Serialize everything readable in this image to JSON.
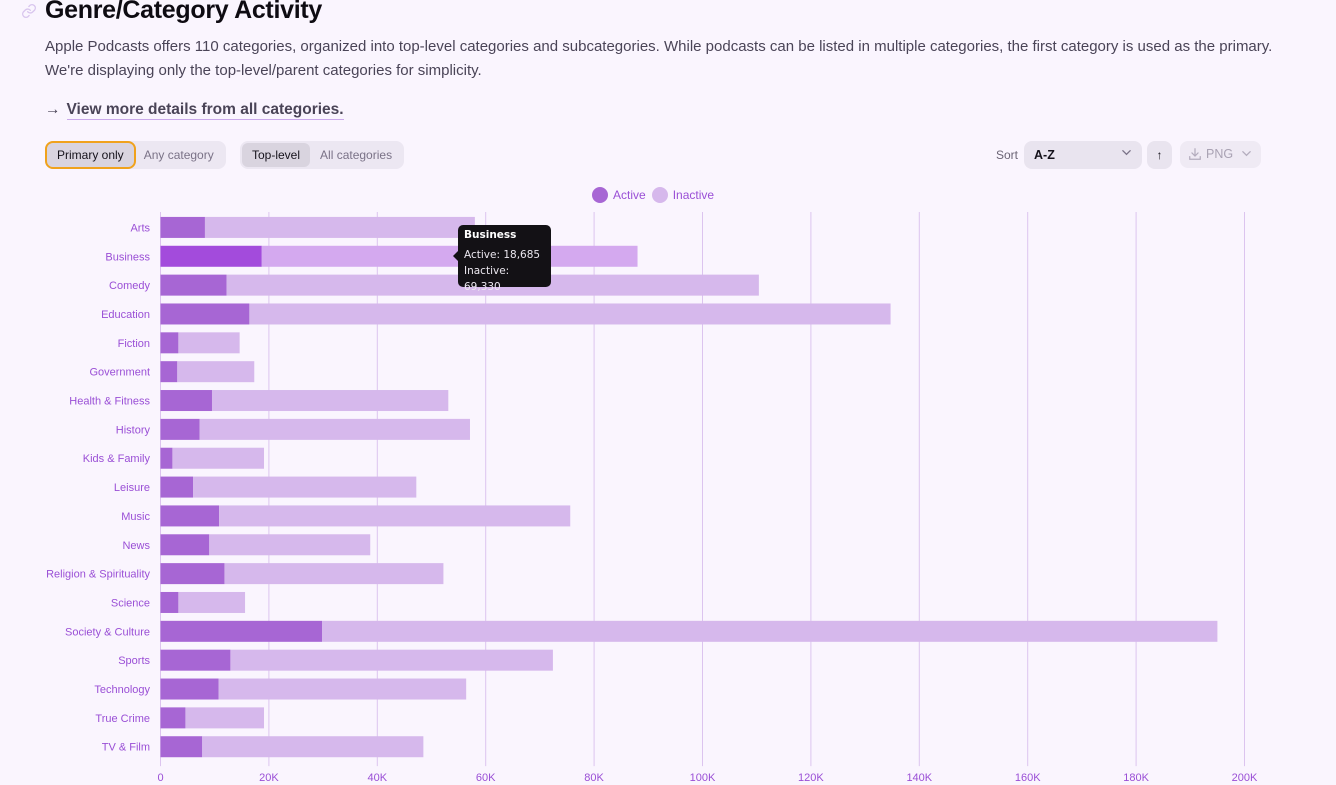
{
  "header": {
    "title": "Genre/Category Activity",
    "link_icon": "link-icon",
    "description": "Apple Podcasts offers 110 categories, organized into top-level categories and subcategories. While podcasts can be listed in multiple categories, the first category is used as the primary. We're displaying only the top-level/parent categories for simplicity.",
    "more_link_arrow": "→",
    "more_link": "View more details from all categories."
  },
  "controls": {
    "category_scope": {
      "options": [
        "Primary only",
        "Any category"
      ],
      "selected": "Primary only"
    },
    "category_level": {
      "options": [
        "Top-level",
        "All categories"
      ],
      "selected": "Top-level"
    },
    "sort_label": "Sort",
    "sort_value": "A-Z",
    "sort_direction_icon": "arrow-up-icon",
    "sort_direction_glyph": "↑",
    "export_label": "PNG",
    "export_icon": "download-icon"
  },
  "colors": {
    "active": "#a766d4",
    "active_highlight": "#a34bdc",
    "inactive": "#d6b8ec",
    "inactive_highlight": "#d4a9ef",
    "gridline": "#dcc4ef",
    "axis_text": "#9a4fd6"
  },
  "tooltip": {
    "category": "Business",
    "active_line": "Active: 18,685",
    "inactive_line": "Inactive: 69,330"
  },
  "chart_data": {
    "type": "bar",
    "orientation": "horizontal",
    "stacked": true,
    "title": "",
    "xlabel": "",
    "ylabel": "",
    "xlim": [
      0,
      200000
    ],
    "x_ticks": [
      0,
      20000,
      40000,
      60000,
      80000,
      100000,
      120000,
      140000,
      160000,
      180000,
      200000
    ],
    "x_tick_labels": [
      "0",
      "20K",
      "40K",
      "60K",
      "80K",
      "100K",
      "120K",
      "140K",
      "160K",
      "180K",
      "200K"
    ],
    "grid": true,
    "legend_position": "top-center",
    "highlighted_category": "Business",
    "categories": [
      "Arts",
      "Business",
      "Comedy",
      "Education",
      "Fiction",
      "Government",
      "Health & Fitness",
      "History",
      "Kids & Family",
      "Leisure",
      "Music",
      "News",
      "Religion & Spirituality",
      "Science",
      "Society & Culture",
      "Sports",
      "Technology",
      "True Crime",
      "TV & Film"
    ],
    "series": [
      {
        "name": "Active",
        "values": [
          8200,
          18685,
          12200,
          16400,
          3300,
          3100,
          9500,
          7200,
          2200,
          6000,
          10800,
          9000,
          11800,
          3300,
          29800,
          12900,
          10700,
          4600,
          7700
        ]
      },
      {
        "name": "Inactive",
        "values": [
          49800,
          69330,
          98200,
          118300,
          11300,
          14200,
          43600,
          49900,
          16900,
          41200,
          64800,
          29700,
          40400,
          12300,
          165200,
          59500,
          45700,
          14500,
          40800
        ]
      }
    ]
  }
}
